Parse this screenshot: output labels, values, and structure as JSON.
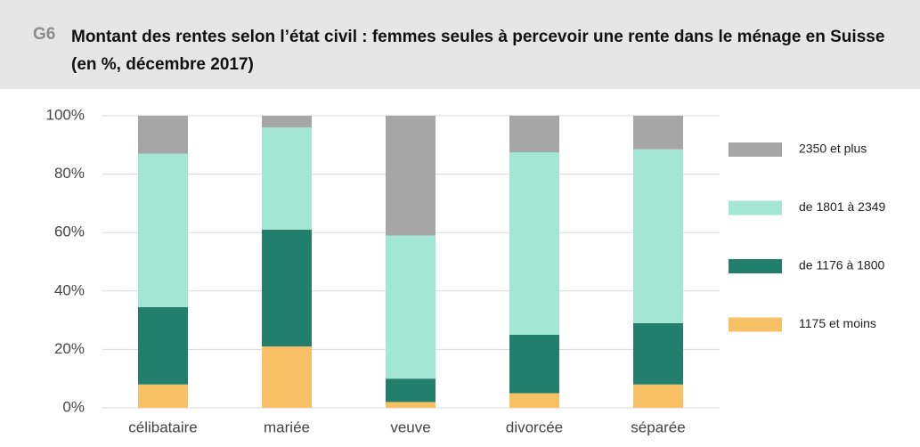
{
  "chart_data": {
    "type": "stacked_bar",
    "number": "G6",
    "title": "Montant des rentes selon l’état civil : femmes seules à percevoir une rente dans le ménage en Suisse (en %, décembre 2017)",
    "categories": [
      "célibataire",
      "mariée",
      "veuve",
      "divorcée",
      "séparée"
    ],
    "series": [
      {
        "name": "1175 et moins",
        "color": "#f8c165",
        "values": [
          8,
          21,
          2,
          5,
          8
        ]
      },
      {
        "name": "de 1176 à 1800",
        "color": "#217f6b",
        "values": [
          26.5,
          40,
          8,
          20,
          21
        ]
      },
      {
        "name": "de 1801 à 2349",
        "color": "#a3e6d4",
        "values": [
          52.5,
          35,
          49,
          62.5,
          59.5
        ]
      },
      {
        "name": "2350 et plus",
        "color": "#a6a6a6",
        "values": [
          13,
          4,
          41,
          12.5,
          11.5
        ]
      }
    ],
    "ylim": [
      0,
      100
    ],
    "yticks": [
      {
        "value": 0,
        "label": "0%"
      },
      {
        "value": 20,
        "label": "20%"
      },
      {
        "value": 40,
        "label": "40%"
      },
      {
        "value": 60,
        "label": "60%"
      },
      {
        "value": 80,
        "label": "80%"
      },
      {
        "value": 100,
        "label": "100%"
      }
    ],
    "grid": true,
    "legend": "right"
  }
}
